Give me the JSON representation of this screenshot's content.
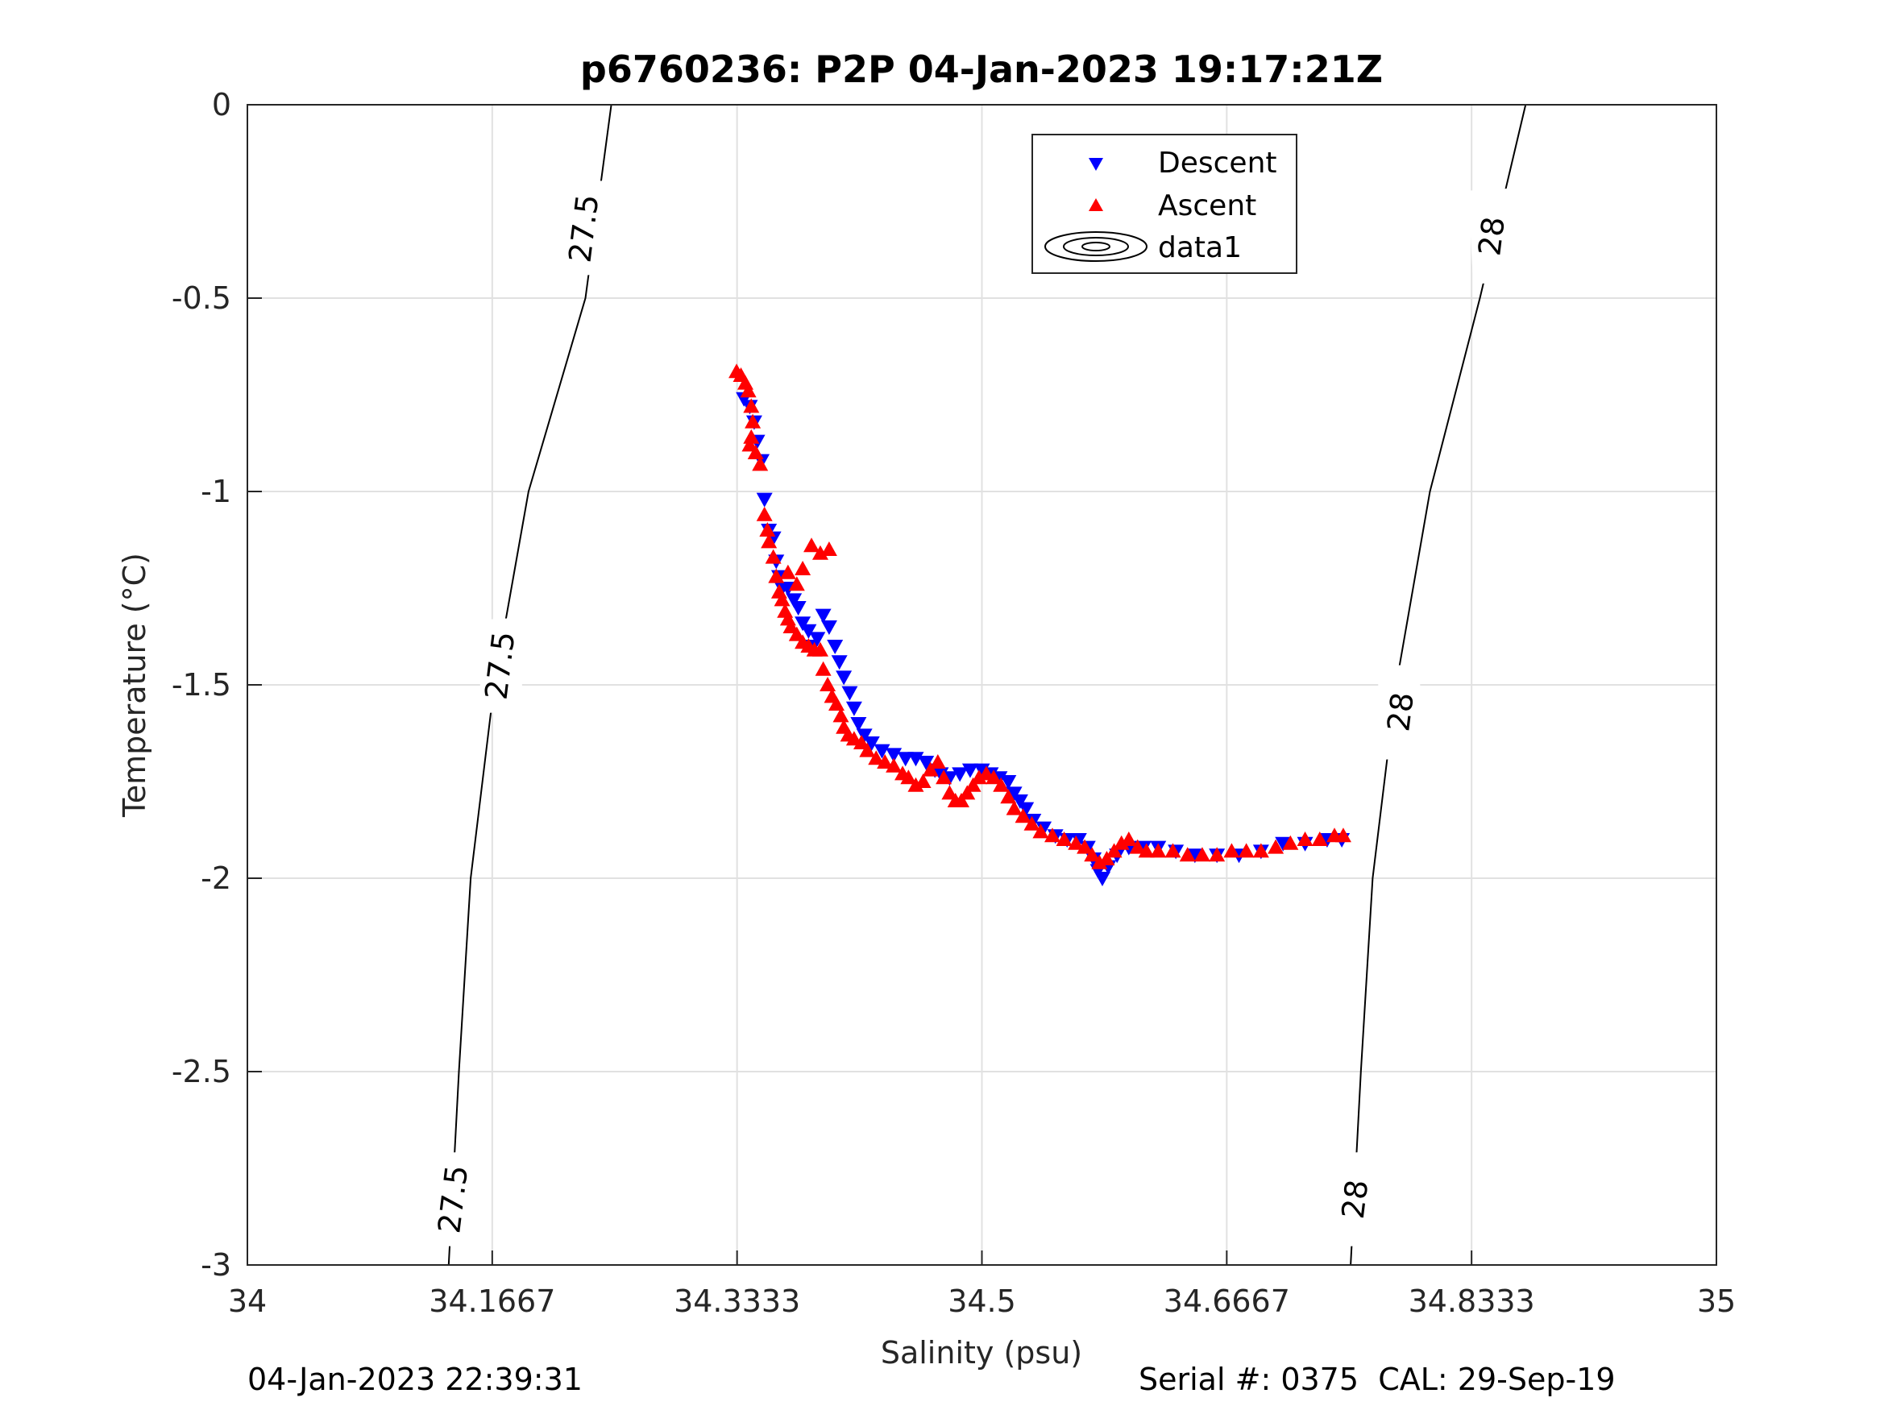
{
  "chart_data": {
    "type": "scatter",
    "title": "p6760236: P2P 04-Jan-2023 19:17:21Z",
    "xlabel": "Salinity (psu)",
    "ylabel": "Temperature (°C)",
    "xlim": [
      34,
      35
    ],
    "ylim": [
      -3,
      0
    ],
    "xticks": [
      34,
      34.16667,
      34.33333,
      34.5,
      34.66667,
      34.83333,
      35
    ],
    "xtick_labels": [
      "34",
      "34.1667",
      "34.3333",
      "34.5",
      "34.6667",
      "34.8333",
      "35"
    ],
    "yticks": [
      0,
      -0.5,
      -1,
      -1.5,
      -2,
      -2.5,
      -3
    ],
    "ytick_labels": [
      "0",
      "-0.5",
      "-1",
      "-1.5",
      "-2",
      "-2.5",
      "-3"
    ],
    "grid": true,
    "legend_position": "top-center",
    "legend": [
      "Descent",
      "Ascent",
      "data1"
    ],
    "series": [
      {
        "name": "Descent",
        "marker": "triangle-down",
        "color": "#0000ff",
        "points": [
          [
            34.338,
            -0.76
          ],
          [
            34.342,
            -0.78
          ],
          [
            34.345,
            -0.82
          ],
          [
            34.347,
            -0.87
          ],
          [
            34.35,
            -0.92
          ],
          [
            34.352,
            -1.02
          ],
          [
            34.355,
            -1.1
          ],
          [
            34.358,
            -1.12
          ],
          [
            34.36,
            -1.18
          ],
          [
            34.362,
            -1.22
          ],
          [
            34.364,
            -1.25
          ],
          [
            34.368,
            -1.25
          ],
          [
            34.372,
            -1.28
          ],
          [
            34.375,
            -1.3
          ],
          [
            34.378,
            -1.34
          ],
          [
            34.382,
            -1.36
          ],
          [
            34.385,
            -1.4
          ],
          [
            34.388,
            -1.38
          ],
          [
            34.392,
            -1.32
          ],
          [
            34.396,
            -1.35
          ],
          [
            34.4,
            -1.4
          ],
          [
            34.403,
            -1.44
          ],
          [
            34.406,
            -1.48
          ],
          [
            34.41,
            -1.52
          ],
          [
            34.413,
            -1.56
          ],
          [
            34.416,
            -1.6
          ],
          [
            34.42,
            -1.63
          ],
          [
            34.425,
            -1.65
          ],
          [
            34.432,
            -1.67
          ],
          [
            34.44,
            -1.68
          ],
          [
            34.448,
            -1.69
          ],
          [
            34.455,
            -1.69
          ],
          [
            34.462,
            -1.7
          ],
          [
            34.468,
            -1.72
          ],
          [
            34.472,
            -1.73
          ],
          [
            34.478,
            -1.74
          ],
          [
            34.485,
            -1.73
          ],
          [
            34.492,
            -1.72
          ],
          [
            34.5,
            -1.72
          ],
          [
            34.506,
            -1.73
          ],
          [
            34.512,
            -1.74
          ],
          [
            34.518,
            -1.75
          ],
          [
            34.522,
            -1.78
          ],
          [
            34.526,
            -1.8
          ],
          [
            34.53,
            -1.82
          ],
          [
            34.535,
            -1.85
          ],
          [
            34.542,
            -1.87
          ],
          [
            34.55,
            -1.89
          ],
          [
            34.558,
            -1.9
          ],
          [
            34.566,
            -1.9
          ],
          [
            34.572,
            -1.92
          ],
          [
            34.576,
            -1.95
          ],
          [
            34.579,
            -1.98
          ],
          [
            34.582,
            -2.0
          ],
          [
            34.586,
            -1.97
          ],
          [
            34.592,
            -1.94
          ],
          [
            34.6,
            -1.92
          ],
          [
            34.61,
            -1.92
          ],
          [
            34.62,
            -1.92
          ],
          [
            34.632,
            -1.93
          ],
          [
            34.645,
            -1.94
          ],
          [
            34.66,
            -1.94
          ],
          [
            34.675,
            -1.94
          ],
          [
            34.69,
            -1.93
          ],
          [
            34.705,
            -1.91
          ],
          [
            34.72,
            -1.91
          ],
          [
            34.735,
            -1.9
          ],
          [
            34.745,
            -1.9
          ]
        ]
      },
      {
        "name": "Ascent",
        "marker": "triangle-up",
        "color": "#ff0000",
        "points": [
          [
            34.333,
            -0.69
          ],
          [
            34.336,
            -0.7
          ],
          [
            34.339,
            -0.72
          ],
          [
            34.341,
            -0.74
          ],
          [
            34.343,
            -0.78
          ],
          [
            34.344,
            -0.82
          ],
          [
            34.343,
            -0.86
          ],
          [
            34.342,
            -0.88
          ],
          [
            34.346,
            -0.9
          ],
          [
            34.349,
            -0.93
          ],
          [
            34.352,
            -1.06
          ],
          [
            34.354,
            -1.1
          ],
          [
            34.355,
            -1.13
          ],
          [
            34.358,
            -1.17
          ],
          [
            34.36,
            -1.22
          ],
          [
            34.362,
            -1.26
          ],
          [
            34.364,
            -1.28
          ],
          [
            34.366,
            -1.31
          ],
          [
            34.368,
            -1.33
          ],
          [
            34.37,
            -1.35
          ],
          [
            34.374,
            -1.37
          ],
          [
            34.378,
            -1.39
          ],
          [
            34.382,
            -1.4
          ],
          [
            34.386,
            -1.41
          ],
          [
            34.39,
            -1.41
          ],
          [
            34.392,
            -1.46
          ],
          [
            34.395,
            -1.5
          ],
          [
            34.398,
            -1.53
          ],
          [
            34.401,
            -1.55
          ],
          [
            34.404,
            -1.58
          ],
          [
            34.406,
            -1.61
          ],
          [
            34.409,
            -1.63
          ],
          [
            34.413,
            -1.64
          ],
          [
            34.418,
            -1.65
          ],
          [
            34.422,
            -1.67
          ],
          [
            34.428,
            -1.69
          ],
          [
            34.434,
            -1.7
          ],
          [
            34.44,
            -1.71
          ],
          [
            34.446,
            -1.73
          ],
          [
            34.45,
            -1.74
          ],
          [
            34.455,
            -1.76
          ],
          [
            34.46,
            -1.75
          ],
          [
            34.465,
            -1.72
          ],
          [
            34.47,
            -1.7
          ],
          [
            34.474,
            -1.74
          ],
          [
            34.478,
            -1.78
          ],
          [
            34.482,
            -1.8
          ],
          [
            34.486,
            -1.8
          ],
          [
            34.49,
            -1.78
          ],
          [
            34.494,
            -1.76
          ],
          [
            34.498,
            -1.74
          ],
          [
            34.503,
            -1.73
          ],
          [
            34.508,
            -1.74
          ],
          [
            34.513,
            -1.76
          ],
          [
            34.518,
            -1.79
          ],
          [
            34.522,
            -1.82
          ],
          [
            34.528,
            -1.84
          ],
          [
            34.534,
            -1.86
          ],
          [
            34.54,
            -1.88
          ],
          [
            34.548,
            -1.89
          ],
          [
            34.556,
            -1.9
          ],
          [
            34.564,
            -1.91
          ],
          [
            34.57,
            -1.92
          ],
          [
            34.575,
            -1.94
          ],
          [
            34.58,
            -1.96
          ],
          [
            34.585,
            -1.95
          ],
          [
            34.59,
            -1.93
          ],
          [
            34.595,
            -1.91
          ],
          [
            34.6,
            -1.9
          ],
          [
            34.606,
            -1.92
          ],
          [
            34.612,
            -1.93
          ],
          [
            34.62,
            -1.93
          ],
          [
            34.63,
            -1.93
          ],
          [
            34.64,
            -1.94
          ],
          [
            34.65,
            -1.94
          ],
          [
            34.66,
            -1.94
          ],
          [
            34.67,
            -1.93
          ],
          [
            34.68,
            -1.93
          ],
          [
            34.69,
            -1.93
          ],
          [
            34.7,
            -1.92
          ],
          [
            34.71,
            -1.91
          ],
          [
            34.72,
            -1.9
          ],
          [
            34.73,
            -1.9
          ],
          [
            34.74,
            -1.89
          ],
          [
            34.746,
            -1.89
          ],
          [
            34.396,
            -1.15
          ],
          [
            34.39,
            -1.16
          ],
          [
            34.384,
            -1.14
          ],
          [
            34.378,
            -1.2
          ],
          [
            34.374,
            -1.24
          ],
          [
            34.368,
            -1.21
          ]
        ]
      }
    ],
    "contours": [
      {
        "level": "27.5",
        "points": [
          [
            34.2477,
            0
          ],
          [
            34.2301,
            -0.5
          ],
          [
            34.1914,
            -1.0
          ],
          [
            34.168,
            -1.5
          ],
          [
            34.152,
            -2.0
          ],
          [
            34.144,
            -2.5
          ],
          [
            34.137,
            -3.0
          ]
        ],
        "labels": [
          {
            "at": [
              34.229,
              -0.32
            ]
          },
          {
            "at": [
              34.172,
              -1.45
            ]
          },
          {
            "at": [
              34.14,
              -2.83
            ]
          }
        ]
      },
      {
        "level": "28",
        "points": [
          [
            34.8701,
            0
          ],
          [
            34.839,
            -0.5
          ],
          [
            34.805,
            -1.0
          ],
          [
            34.782,
            -1.5
          ],
          [
            34.766,
            -2.0
          ],
          [
            34.758,
            -2.5
          ],
          [
            34.751,
            -3.0
          ]
        ],
        "labels": [
          {
            "at": [
              34.847,
              -0.34
            ]
          },
          {
            "at": [
              34.785,
              -1.57
            ]
          },
          {
            "at": [
              34.754,
              -2.83
            ]
          }
        ]
      }
    ]
  },
  "footer": {
    "left": "04-Jan-2023 22:39:31",
    "right": "Serial #: 0375  CAL: 29-Sep-19"
  }
}
